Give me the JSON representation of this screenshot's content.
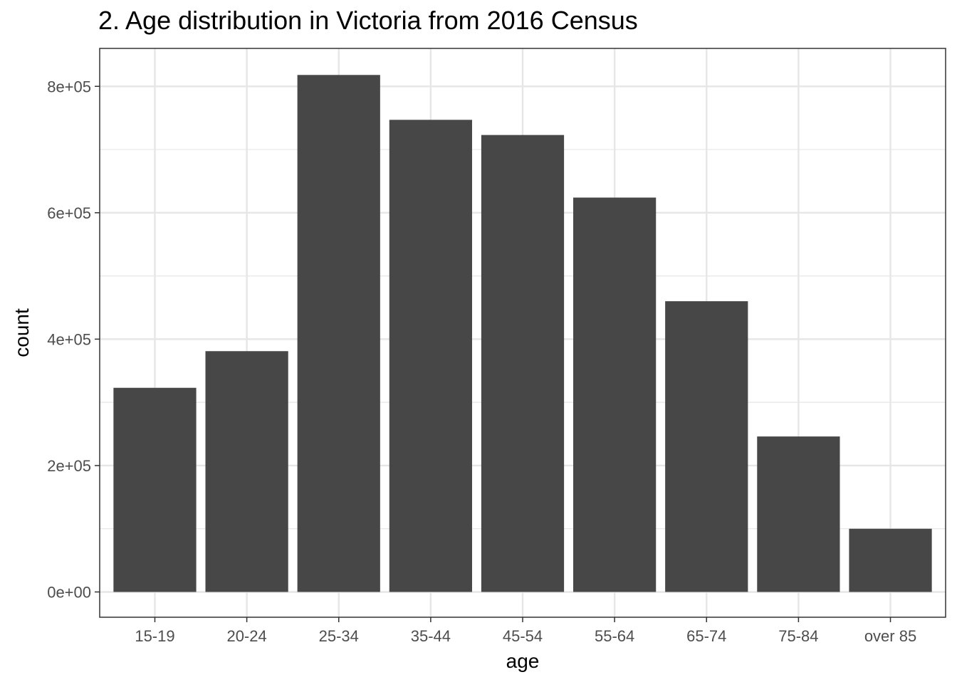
{
  "chart_data": {
    "type": "bar",
    "title": "2. Age distribution in Victoria from 2016 Census",
    "xlabel": "age",
    "ylabel": "count",
    "categories": [
      "15-19",
      "20-24",
      "25-34",
      "35-44",
      "45-54",
      "55-64",
      "65-74",
      "75-84",
      "over 85"
    ],
    "values": [
      323000,
      381000,
      818000,
      747000,
      723000,
      624000,
      460000,
      246000,
      100000
    ],
    "ylim": [
      -40000,
      860000
    ],
    "yticks": [
      0,
      200000,
      400000,
      600000,
      800000
    ],
    "ytick_labels": [
      "0e+00",
      "2e+05",
      "4e+05",
      "6e+05",
      "8e+05"
    ],
    "grid": true,
    "bar_color": "#474747",
    "grid_color": "#e6e6e6",
    "panel_border_color": "#333333"
  }
}
